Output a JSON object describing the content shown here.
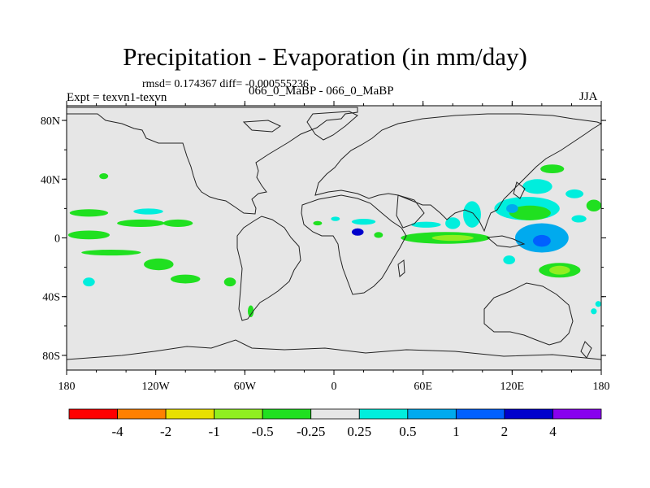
{
  "chart_data": {
    "type": "heatmap",
    "title": "Precipitation - Evaporation (in mm/day)",
    "stats_text": "rmsd= 0.174367 diff= -0.000555236",
    "left_label": "Expt = texvn1-texvn",
    "subtitle": "066_0_MaBP - 066_0_MaBP",
    "season": "JJA",
    "xlim": [
      -180,
      180
    ],
    "ylim": [
      -90,
      90
    ],
    "x_ticks": [
      {
        "value": -180,
        "label": "180"
      },
      {
        "value": -120,
        "label": "120W"
      },
      {
        "value": -60,
        "label": "60W"
      },
      {
        "value": 0,
        "label": "0"
      },
      {
        "value": 60,
        "label": "60E"
      },
      {
        "value": 120,
        "label": "120E"
      },
      {
        "value": 180,
        "label": "180"
      }
    ],
    "y_ticks": [
      {
        "value": 80,
        "label": "80N"
      },
      {
        "value": 40,
        "label": "40N"
      },
      {
        "value": 0,
        "label": "0"
      },
      {
        "value": -40,
        "label": "40S"
      },
      {
        "value": -80,
        "label": "80S"
      }
    ],
    "colorbar": {
      "colors": [
        "#ff0000",
        "#ff8000",
        "#e8e000",
        "#90ee20",
        "#20e020",
        "#e6e6e6",
        "#00eedd",
        "#00aaee",
        "#0060ff",
        "#0000cc",
        "#8800ee"
      ],
      "labels": [
        "-4",
        "-2",
        "-1",
        "-0.5",
        "-0.25",
        "0.25",
        "0.5",
        "1",
        "2",
        "4"
      ]
    },
    "anomalies": [
      {
        "lon": -165,
        "lat": 2,
        "rx": 14,
        "ry": 3,
        "color": "#20e020"
      },
      {
        "lon": -130,
        "lat": 10,
        "rx": 16,
        "ry": 2.5,
        "color": "#20e020"
      },
      {
        "lon": -105,
        "lat": 10,
        "rx": 10,
        "ry": 2.5,
        "color": "#20e020"
      },
      {
        "lon": -165,
        "lat": 17,
        "rx": 13,
        "ry": 2.5,
        "color": "#20e020"
      },
      {
        "lon": -125,
        "lat": 18,
        "rx": 10,
        "ry": 2,
        "color": "#00eedd"
      },
      {
        "lon": -118,
        "lat": -18,
        "rx": 10,
        "ry": 4,
        "color": "#20e020"
      },
      {
        "lon": -100,
        "lat": -28,
        "rx": 10,
        "ry": 3,
        "color": "#20e020"
      },
      {
        "lon": -70,
        "lat": -30,
        "rx": 4,
        "ry": 3,
        "color": "#20e020"
      },
      {
        "lon": -150,
        "lat": -10,
        "rx": 20,
        "ry": 2,
        "color": "#20e020"
      },
      {
        "lon": -165,
        "lat": -30,
        "rx": 4,
        "ry": 3,
        "color": "#00eedd"
      },
      {
        "lon": -155,
        "lat": 42,
        "rx": 3,
        "ry": 2,
        "color": "#20e020"
      },
      {
        "lon": -56,
        "lat": -50,
        "rx": 2,
        "ry": 4,
        "color": "#20e020"
      },
      {
        "lon": -11,
        "lat": 10,
        "rx": 3,
        "ry": 1.5,
        "color": "#20e020"
      },
      {
        "lon": 1,
        "lat": 13,
        "rx": 3,
        "ry": 1.5,
        "color": "#00eedd"
      },
      {
        "lon": 20,
        "lat": 11,
        "rx": 8,
        "ry": 2,
        "color": "#00eedd"
      },
      {
        "lon": 62,
        "lat": 9,
        "rx": 10,
        "ry": 2,
        "color": "#00eedd"
      },
      {
        "lon": 80,
        "lat": 10,
        "rx": 5,
        "ry": 4,
        "color": "#00eedd"
      },
      {
        "lon": 16,
        "lat": 4,
        "rx": 4,
        "ry": 2.5,
        "color": "#0000cc"
      },
      {
        "lon": 30,
        "lat": 2,
        "rx": 3,
        "ry": 2,
        "color": "#20e020"
      },
      {
        "lon": 75,
        "lat": 0,
        "rx": 30,
        "ry": 4,
        "color": "#20e020"
      },
      {
        "lon": 80,
        "lat": 0,
        "rx": 14,
        "ry": 2,
        "color": "#90ee20"
      },
      {
        "lon": 93,
        "lat": 16,
        "rx": 6,
        "ry": 9,
        "color": "#00eedd"
      },
      {
        "lon": 130,
        "lat": 20,
        "rx": 22,
        "ry": 8,
        "color": "#00eedd"
      },
      {
        "lon": 132,
        "lat": 17,
        "rx": 14,
        "ry": 5,
        "color": "#20e020"
      },
      {
        "lon": 140,
        "lat": 0,
        "rx": 18,
        "ry": 10,
        "color": "#00aaee"
      },
      {
        "lon": 140,
        "lat": -2,
        "rx": 6,
        "ry": 4,
        "color": "#0060ff"
      },
      {
        "lon": 152,
        "lat": -22,
        "rx": 14,
        "ry": 5,
        "color": "#20e020"
      },
      {
        "lon": 152,
        "lat": -22,
        "rx": 7,
        "ry": 3,
        "color": "#90ee20"
      },
      {
        "lon": 162,
        "lat": 30,
        "rx": 6,
        "ry": 3,
        "color": "#00eedd"
      },
      {
        "lon": 165,
        "lat": 13,
        "rx": 5,
        "ry": 2.5,
        "color": "#00eedd"
      },
      {
        "lon": 147,
        "lat": 47,
        "rx": 8,
        "ry": 3,
        "color": "#20e020"
      },
      {
        "lon": 137,
        "lat": 35,
        "rx": 10,
        "ry": 5,
        "color": "#00eedd"
      },
      {
        "lon": 175,
        "lat": 22,
        "rx": 5,
        "ry": 4,
        "color": "#20e020"
      },
      {
        "lon": 118,
        "lat": -15,
        "rx": 4,
        "ry": 3,
        "color": "#00eedd"
      },
      {
        "lon": 120,
        "lat": 20,
        "rx": 4,
        "ry": 3,
        "color": "#00aaee"
      },
      {
        "lon": 175,
        "lat": -50,
        "rx": 2,
        "ry": 2,
        "color": "#00eedd"
      },
      {
        "lon": 178,
        "lat": -45,
        "rx": 2,
        "ry": 2,
        "color": "#00eedd"
      }
    ]
  }
}
